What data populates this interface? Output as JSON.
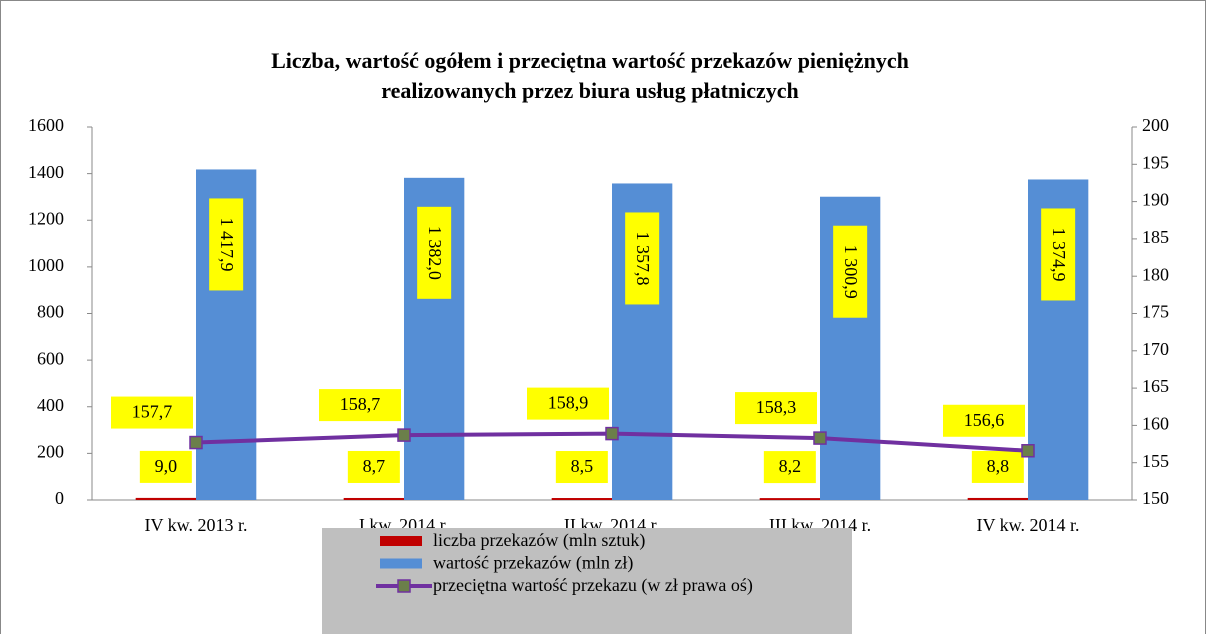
{
  "chart_data": {
    "type": "bar",
    "title": [
      "Liczba, wartość ogółem i przeciętna wartość przekazów pieniężnych",
      "realizowanych przez biura usług płatniczych"
    ],
    "categories": [
      "IV kw. 2013 r.",
      "I kw. 2014 r.",
      "II kw. 2014 r.",
      "III kw. 2014 r.",
      "IV kw. 2014 r."
    ],
    "series": [
      {
        "name": "liczba przekazów (mln sztuk)",
        "type": "bar",
        "color": "#c00000",
        "values": [
          9.0,
          8.7,
          8.5,
          8.2,
          8.8
        ],
        "value_labels": [
          "9,0",
          "8,7",
          "8,5",
          "8,2",
          "8,8"
        ]
      },
      {
        "name": "wartość przekazów (mln zł)",
        "type": "bar",
        "color": "#558ed5",
        "values": [
          1417.9,
          1382.0,
          1357.8,
          1300.9,
          1374.9
        ],
        "value_labels": [
          "1 417,9",
          "1 382,0",
          "1 357,8",
          "1 300,9",
          "1 374,9"
        ]
      },
      {
        "name": "przeciętna wartość przekazu (w zł prawa oś)",
        "type": "line",
        "axis": "y2",
        "color": "#7030a0",
        "marker_color": "#6b7f4a",
        "values": [
          157.7,
          158.7,
          158.9,
          158.3,
          156.6
        ],
        "value_labels": [
          "157,7",
          "158,7",
          "158,9",
          "158,3",
          "156,6"
        ]
      }
    ],
    "ylim": [
      0,
      1600
    ],
    "yticks": [
      0,
      200,
      400,
      600,
      800,
      1000,
      1200,
      1400,
      1600
    ],
    "y2lim": [
      150,
      200
    ],
    "y2ticks": [
      150,
      155,
      160,
      165,
      170,
      175,
      180,
      185,
      190,
      195,
      200
    ],
    "grid": false,
    "legend": "bottom"
  }
}
